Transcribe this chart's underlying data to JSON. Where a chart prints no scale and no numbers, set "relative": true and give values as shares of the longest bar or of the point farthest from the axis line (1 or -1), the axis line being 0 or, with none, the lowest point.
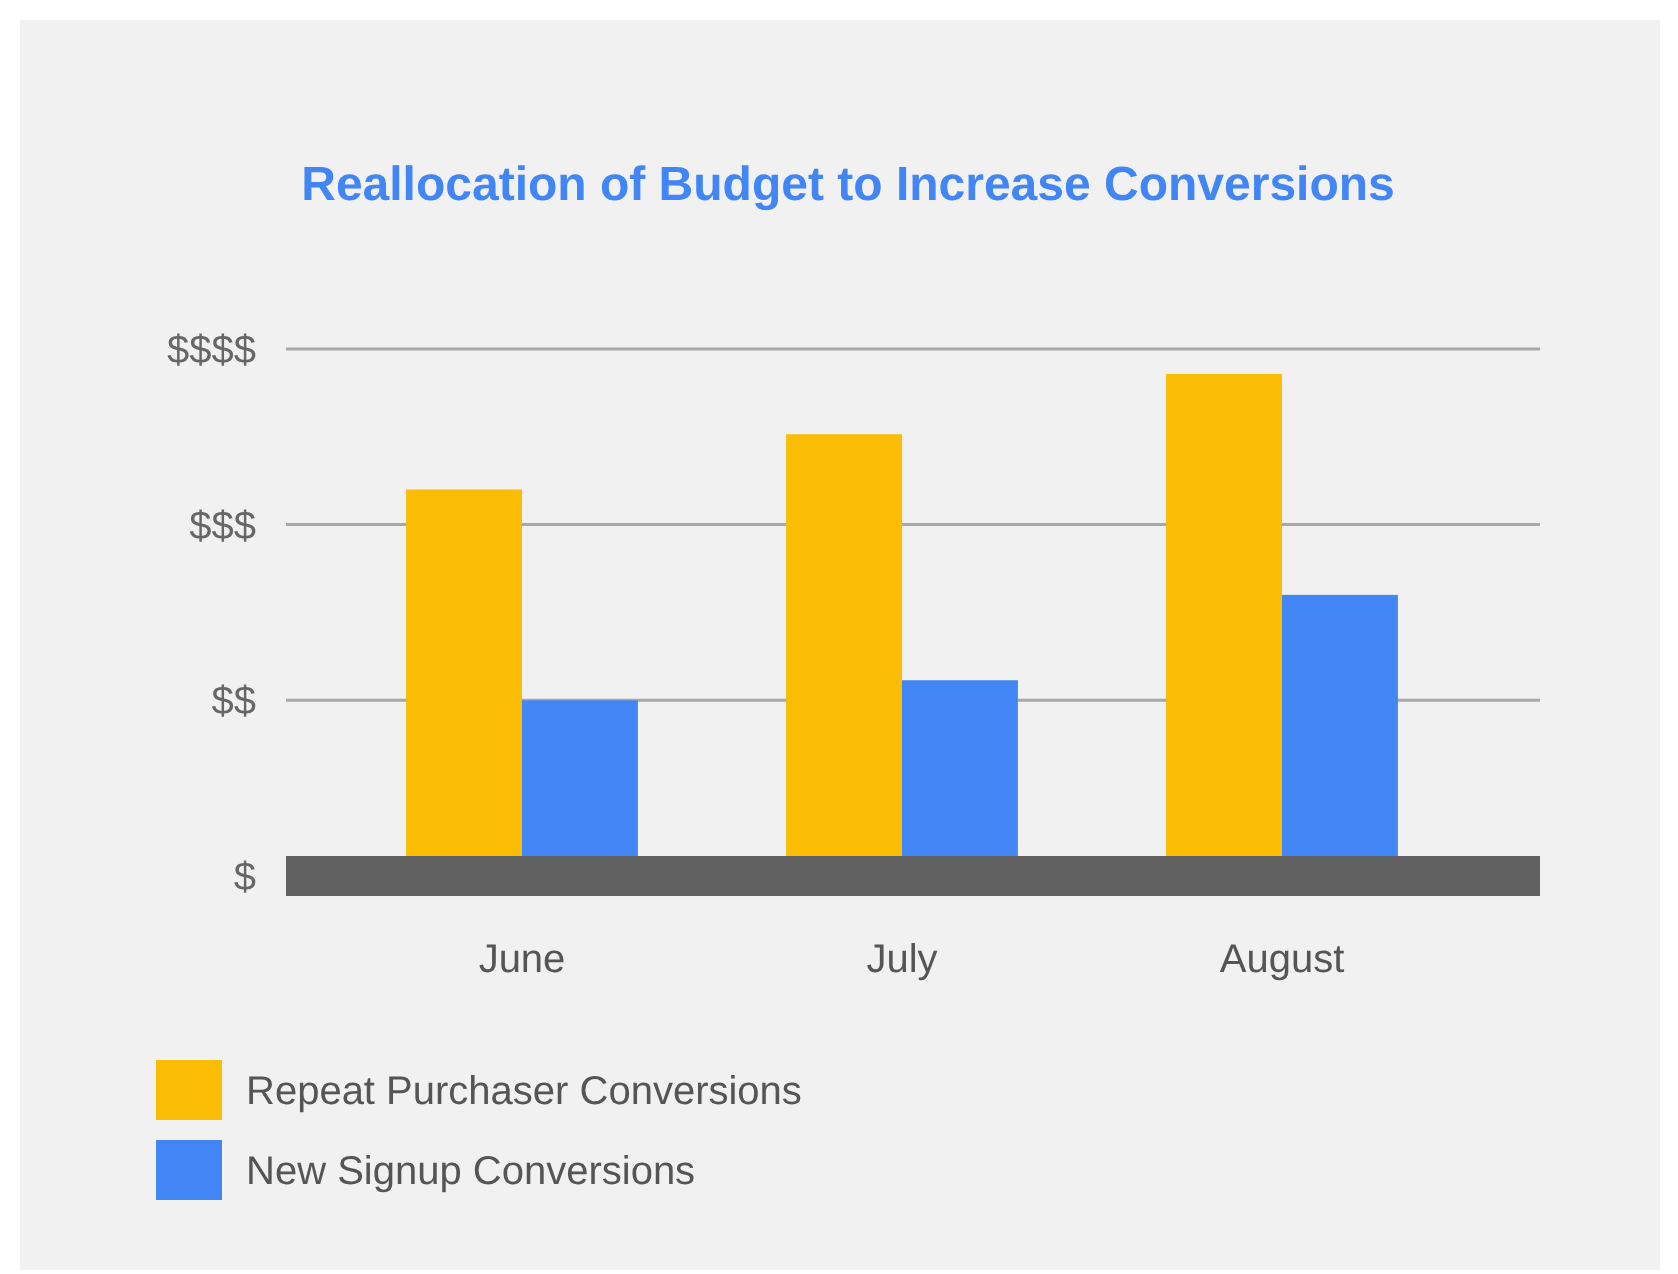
{
  "chart_data": {
    "type": "bar",
    "title": "Reallocation of Budget to Increase Conversions",
    "categories": [
      "June",
      "July",
      "August"
    ],
    "series": [
      {
        "name": "Repeat Purchaser Conversions",
        "color": "#fbbc04",
        "values": [
          0.77,
          0.88,
          1
        ]
      },
      {
        "name": "New Signup Conversions",
        "color": "#4285f4",
        "values": [
          0.35,
          0.39,
          0.56
        ]
      }
    ],
    "relative": true,
    "annotations": [
      "$"
    ],
    "ref_lines": [
      {
        "axis": "y",
        "value": 0.35,
        "label": "$$",
        "color": "#a8a8a8"
      },
      {
        "axis": "y",
        "value": 0.7,
        "label": "$$$",
        "color": "#a8a8a8"
      },
      {
        "axis": "y",
        "value": 1.05,
        "label": "$$$$",
        "color": "#a8a8a8"
      }
    ],
    "legend": "bottom left"
  }
}
